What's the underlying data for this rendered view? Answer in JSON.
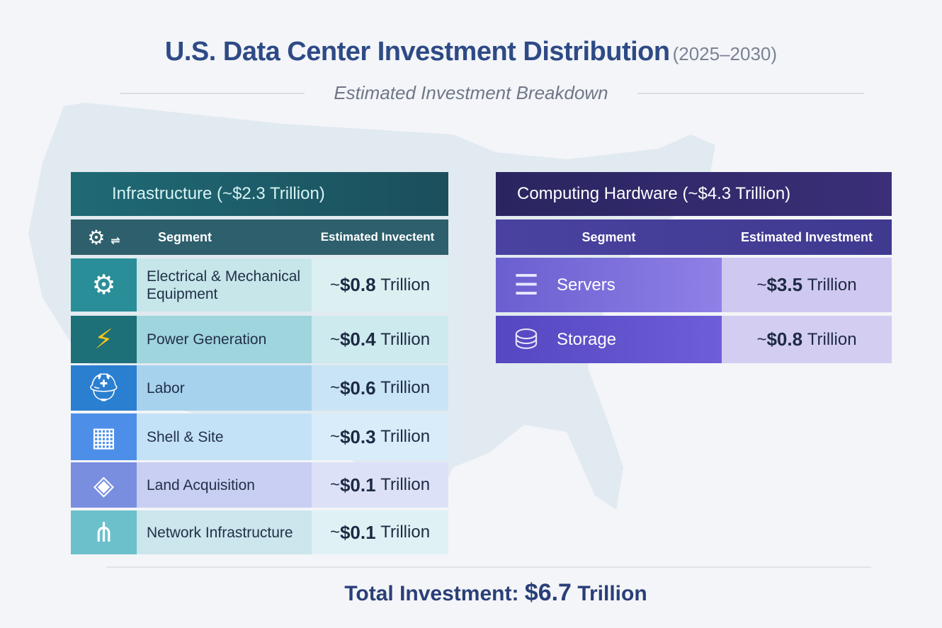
{
  "title": {
    "main": "U.S. Data Center Investment Distribution",
    "years": "(2025–2030)",
    "subtitle": "Estimated Investment Breakdown"
  },
  "infrastructure": {
    "title": "Infrastructure (~$2.3 Trillion)",
    "col_segment": "Segment",
    "col_investment": "Estimated Invectent",
    "rows": [
      {
        "icon": "gears-icon",
        "segment": "Electrical & Mechanical Equipment",
        "tilde": "~",
        "amount": "$0.8",
        "unit": "Trillion"
      },
      {
        "icon": "lightning-bolt-icon",
        "segment": "Power Generation",
        "tilde": "~",
        "amount": "$0.4",
        "unit": "Trillion"
      },
      {
        "icon": "hard-hat-icon",
        "segment": "Labor",
        "tilde": "~",
        "amount": "$0.6",
        "unit": "Trillion"
      },
      {
        "icon": "building-icon",
        "segment": "Shell & Site",
        "tilde": "~",
        "amount": "$0.3",
        "unit": "Trillion"
      },
      {
        "icon": "layers-icon",
        "segment": "Land Acquisition",
        "tilde": "~",
        "amount": "$0.1",
        "unit": "Trillion"
      },
      {
        "icon": "network-icon",
        "segment": "Network Infrastructure",
        "tilde": "~",
        "amount": "$0.1",
        "unit": "Trillion"
      }
    ]
  },
  "hardware": {
    "title": "Computing Hardware (~$4.3 Trillion)",
    "col_segment": "Segment",
    "col_investment": "Estimated Investment",
    "rows": [
      {
        "icon": "server-rack-icon",
        "segment": "Servers",
        "tilde": "~",
        "amount": "$3.5",
        "unit": "Trillion"
      },
      {
        "icon": "database-icon",
        "segment": "Storage",
        "tilde": "~",
        "amount": "$0.8",
        "unit": "Trillion"
      }
    ]
  },
  "total": {
    "label": "Total Investment:",
    "amount": "$6.7",
    "unit": "Trillion"
  },
  "colors": {
    "title": "#2e4a86",
    "infra_header": "#1e5c68",
    "hardware_header": "#2f2a66",
    "hardware_sub": "#4a42a0"
  }
}
